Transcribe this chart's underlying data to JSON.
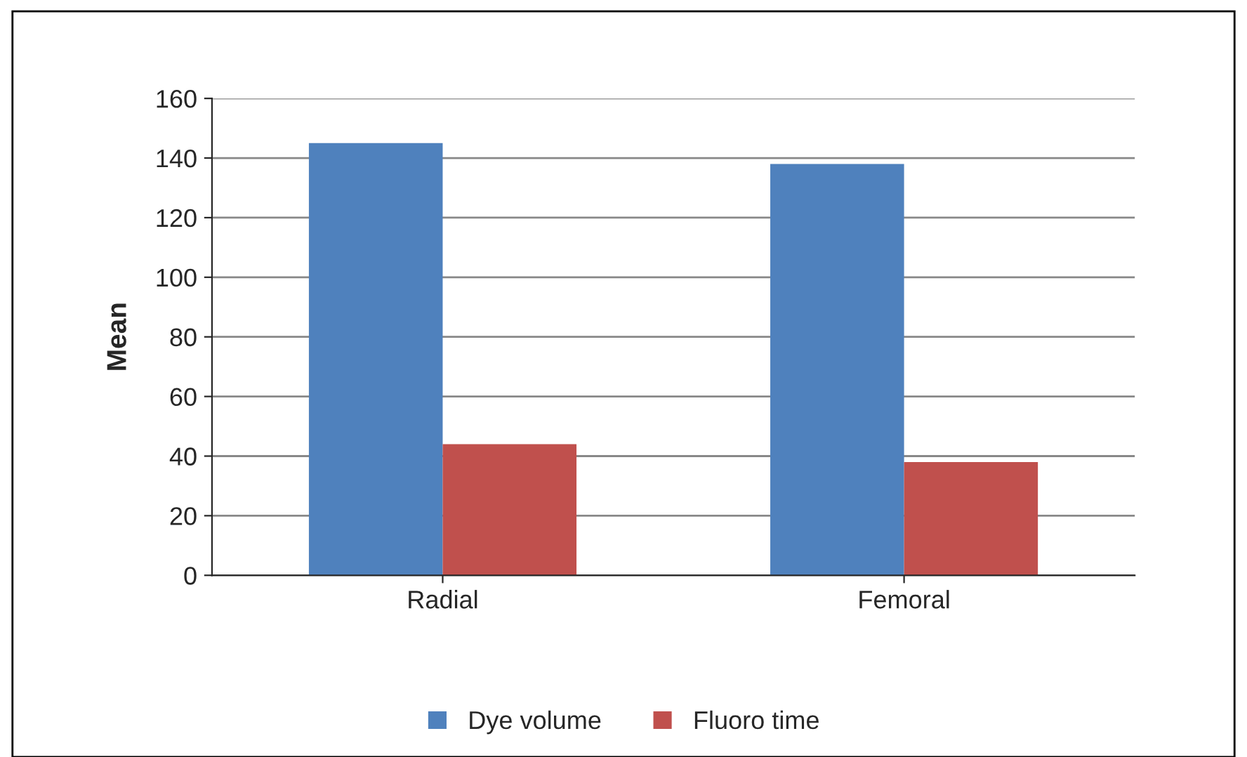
{
  "chart_data": {
    "type": "bar",
    "ylabel": "Mean",
    "categories": [
      "Radial",
      "Femoral"
    ],
    "series": [
      {
        "name": "Dye volume",
        "color": "#4f81bd",
        "values": [
          145,
          138
        ]
      },
      {
        "name": "Fluoro time",
        "color": "#c0504d",
        "values": [
          44,
          38
        ]
      }
    ],
    "ylim": [
      0,
      160
    ],
    "yticks": [
      0,
      20,
      40,
      60,
      80,
      100,
      120,
      140,
      160
    ],
    "grid": "y",
    "legend": "bottom"
  }
}
